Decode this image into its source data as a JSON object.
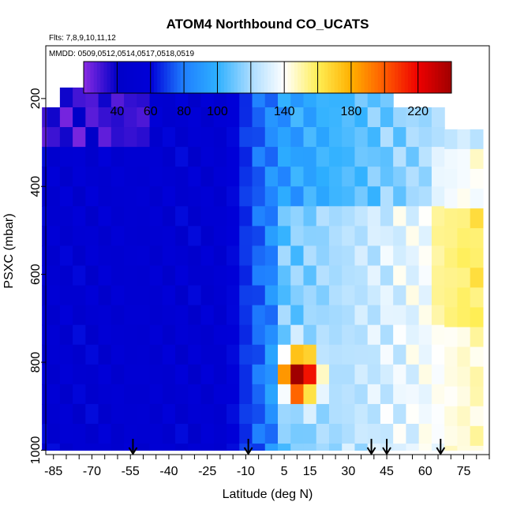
{
  "chart_data": {
    "type": "heatmap",
    "title": "ATOM4 Northbound CO_UCATS",
    "flights_note": "Flts: 7,8,9,10,11,12",
    "dates_note": "MMDD: 0509,0512,0514,0517,0518,0519",
    "xlabel": "Latitude (deg N)",
    "ylabel": "PSXC (mbar)",
    "xlim": [
      -88,
      85
    ],
    "ylim": [
      1010,
      80
    ],
    "x_ticks": [
      -85,
      -70,
      -55,
      -40,
      -25,
      -10,
      5,
      15,
      30,
      45,
      60,
      75
    ],
    "y_ticks": [
      200,
      400,
      600,
      800,
      1000
    ],
    "colorbar": {
      "min": 20,
      "max": 240,
      "ticks": [
        40,
        60,
        80,
        100,
        140,
        180,
        220
      ],
      "stops": [
        {
          "v": 20,
          "c": "#8a2be2"
        },
        {
          "v": 40,
          "c": "#0000c8"
        },
        {
          "v": 60,
          "c": "#0000d8"
        },
        {
          "v": 80,
          "c": "#1f7fff"
        },
        {
          "v": 100,
          "c": "#2eb0ff"
        },
        {
          "v": 120,
          "c": "#aadcff"
        },
        {
          "v": 140,
          "c": "#ffffff"
        },
        {
          "v": 160,
          "c": "#ffee55"
        },
        {
          "v": 180,
          "c": "#ffb000"
        },
        {
          "v": 200,
          "c": "#ff5a00"
        },
        {
          "v": 220,
          "c": "#ee0000"
        },
        {
          "v": 240,
          "c": "#a00000"
        }
      ]
    },
    "arrow_latitudes": [
      -54,
      -9,
      39,
      45,
      66
    ],
    "columns": [
      {
        "lat": -87,
        "ps": 220,
        "pe": 1000
      },
      {
        "lat": -85,
        "ps": 220,
        "pe": 1000
      },
      {
        "lat": -80,
        "ps": 175,
        "pe": 1000
      },
      {
        "lat": -75,
        "ps": 175,
        "pe": 1000
      },
      {
        "lat": -70,
        "ps": 175,
        "pe": 1000
      },
      {
        "lat": -65,
        "ps": 175,
        "pe": 1000
      },
      {
        "lat": -60,
        "ps": 175,
        "pe": 1000
      },
      {
        "lat": -55,
        "ps": 175,
        "pe": 1000
      },
      {
        "lat": -50,
        "ps": 175,
        "pe": 1000
      },
      {
        "lat": -45,
        "ps": 175,
        "pe": 1000
      },
      {
        "lat": -40,
        "ps": 175,
        "pe": 1000
      },
      {
        "lat": -35,
        "ps": 175,
        "pe": 1000
      },
      {
        "lat": -30,
        "ps": 175,
        "pe": 1000
      },
      {
        "lat": -25,
        "ps": 175,
        "pe": 1000
      },
      {
        "lat": -20,
        "ps": 175,
        "pe": 1000
      },
      {
        "lat": -15,
        "ps": 175,
        "pe": 1000
      },
      {
        "lat": -10,
        "ps": 175,
        "pe": 1000
      },
      {
        "lat": -5,
        "ps": 175,
        "pe": 1000
      },
      {
        "lat": 0,
        "ps": 175,
        "pe": 1000
      },
      {
        "lat": 5,
        "ps": 175,
        "pe": 1000
      },
      {
        "lat": 10,
        "ps": 175,
        "pe": 1000
      },
      {
        "lat": 15,
        "ps": 175,
        "pe": 1000
      },
      {
        "lat": 20,
        "ps": 175,
        "pe": 1000
      },
      {
        "lat": 25,
        "ps": 175,
        "pe": 1000
      },
      {
        "lat": 30,
        "ps": 175,
        "pe": 1000
      },
      {
        "lat": 35,
        "ps": 175,
        "pe": 1000
      },
      {
        "lat": 40,
        "ps": 175,
        "pe": 1000
      },
      {
        "lat": 45,
        "ps": 175,
        "pe": 1000
      },
      {
        "lat": 50,
        "ps": 220,
        "pe": 1000
      },
      {
        "lat": 55,
        "ps": 220,
        "pe": 1000
      },
      {
        "lat": 60,
        "ps": 220,
        "pe": 1000
      },
      {
        "lat": 65,
        "ps": 220,
        "pe": 1000
      },
      {
        "lat": 70,
        "ps": 270,
        "pe": 1000
      },
      {
        "lat": 75,
        "ps": 270,
        "pe": 1000
      },
      {
        "lat": 80,
        "ps": 270,
        "pe": 1000
      }
    ]
  }
}
